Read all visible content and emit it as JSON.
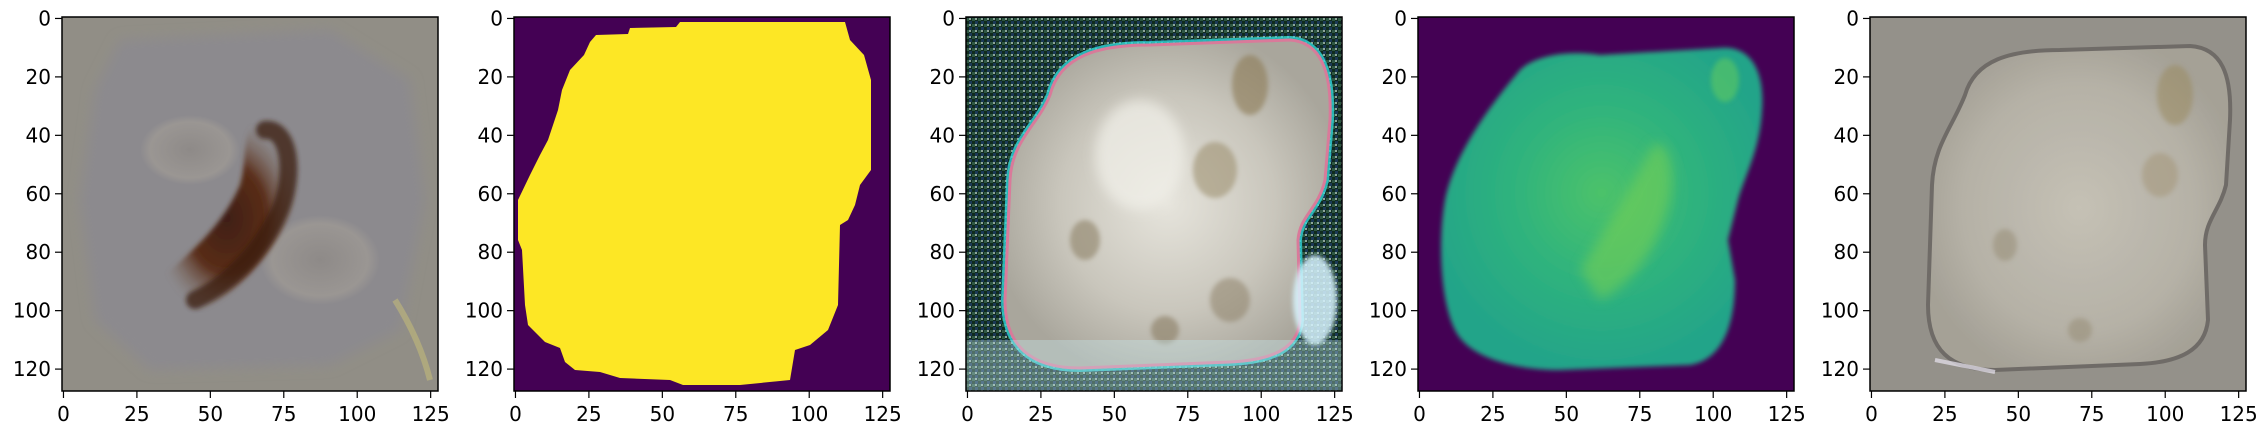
{
  "figure": {
    "panels": [
      {
        "description": "original photo of skin lesion",
        "xticks": [
          "0",
          "25",
          "50",
          "75",
          "100",
          "125"
        ],
        "yticks": [
          "0",
          "20",
          "40",
          "60",
          "80",
          "100",
          "120"
        ]
      },
      {
        "description": "binary segmentation mask (yellow on purple)",
        "xticks": [
          "0",
          "25",
          "50",
          "75",
          "100",
          "125"
        ],
        "yticks": [
          "0",
          "20",
          "40",
          "60",
          "80",
          "100",
          "120"
        ]
      },
      {
        "description": "generated RGB image with artifacts",
        "xticks": [
          "0",
          "25",
          "50",
          "75",
          "100",
          "125"
        ],
        "yticks": [
          "0",
          "20",
          "40",
          "60",
          "80",
          "100",
          "120"
        ]
      },
      {
        "description": "viridis heatmap of predicted region",
        "xticks": [
          "0",
          "25",
          "50",
          "75",
          "100",
          "125"
        ],
        "yticks": [
          "0",
          "20",
          "40",
          "60",
          "80",
          "100",
          "120"
        ]
      },
      {
        "description": "blended reconstruction",
        "xticks": [
          "0",
          "25",
          "50",
          "75",
          "100",
          "125"
        ],
        "yticks": [
          "0",
          "20",
          "40",
          "60",
          "80",
          "100",
          "120"
        ]
      }
    ],
    "colors": {
      "viridis_dark": "#440154",
      "viridis_yellow": "#fde725",
      "viridis_teal": "#21a386",
      "viridis_green": "#5ec962",
      "skin_gray": "#8f8b84",
      "lesion_brown": "#5a2e1a"
    }
  }
}
